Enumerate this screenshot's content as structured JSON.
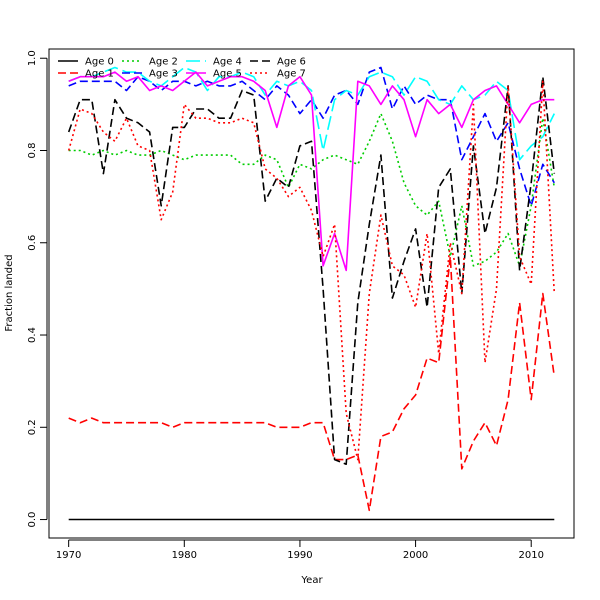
{
  "chart_data": {
    "type": "line",
    "title": "",
    "xlabel": "Year",
    "ylabel": "Fraction landed",
    "xlim": [
      1968.3,
      2013.7
    ],
    "ylim": [
      -0.04,
      1.02
    ],
    "xticks": [
      1970,
      1980,
      1990,
      2000,
      2010
    ],
    "yticks": [
      0.0,
      0.2,
      0.4,
      0.6,
      0.8,
      1.0
    ],
    "xtick_labels": [
      "1970",
      "1980",
      "1990",
      "2000",
      "2010"
    ],
    "ytick_labels": [
      "0.0",
      "0.2",
      "0.4",
      "0.6",
      "0.8",
      "1.0"
    ],
    "legend_position": "top-left",
    "grid": false,
    "x": [
      1970,
      1971,
      1972,
      1973,
      1974,
      1975,
      1976,
      1977,
      1978,
      1979,
      1980,
      1981,
      1982,
      1983,
      1984,
      1985,
      1986,
      1987,
      1988,
      1989,
      1990,
      1991,
      1992,
      1993,
      1994,
      1995,
      1996,
      1997,
      1998,
      1999,
      2000,
      2001,
      2002,
      2003,
      2004,
      2005,
      2006,
      2007,
      2008,
      2009,
      2010,
      2011,
      2012
    ],
    "series": [
      {
        "name": "Age 0",
        "color": "#000000",
        "dash": "solid",
        "values": [
          0,
          0,
          0,
          0,
          0,
          0,
          0,
          0,
          0,
          0,
          0,
          0,
          0,
          0,
          0,
          0,
          0,
          0,
          0,
          0,
          0,
          0,
          0,
          0,
          0,
          0,
          0,
          0,
          0,
          0,
          0,
          0,
          0,
          0,
          0,
          0,
          0,
          0,
          0,
          0,
          0,
          0,
          0
        ]
      },
      {
        "name": "Age 1",
        "color": "#ff0000",
        "dash": "dashed",
        "values": [
          0.22,
          0.21,
          0.22,
          0.21,
          0.21,
          0.21,
          0.21,
          0.21,
          0.21,
          0.2,
          0.21,
          0.21,
          0.21,
          0.21,
          0.21,
          0.21,
          0.21,
          0.21,
          0.2,
          0.2,
          0.2,
          0.21,
          0.21,
          0.13,
          0.13,
          0.14,
          0.02,
          0.18,
          0.19,
          0.24,
          0.27,
          0.35,
          0.34,
          0.57,
          0.11,
          0.17,
          0.21,
          0.16,
          0.26,
          0.47,
          0.26,
          0.49,
          0.31
        ]
      },
      {
        "name": "Age 2",
        "color": "#00cd00",
        "dash": "dotted",
        "values": [
          0.8,
          0.8,
          0.79,
          0.8,
          0.79,
          0.8,
          0.79,
          0.79,
          0.8,
          0.79,
          0.78,
          0.79,
          0.79,
          0.79,
          0.79,
          0.77,
          0.77,
          0.79,
          0.78,
          0.72,
          0.77,
          0.76,
          0.78,
          0.79,
          0.78,
          0.77,
          0.82,
          0.88,
          0.82,
          0.73,
          0.68,
          0.66,
          0.69,
          0.57,
          0.68,
          0.55,
          0.56,
          0.58,
          0.62,
          0.55,
          0.68,
          0.87,
          0.72
        ]
      },
      {
        "name": "Age 3",
        "color": "#0000ff",
        "dash": "dashed",
        "values": [
          0.94,
          0.95,
          0.95,
          0.95,
          0.95,
          0.93,
          0.96,
          0.95,
          0.93,
          0.95,
          0.95,
          0.94,
          0.95,
          0.94,
          0.94,
          0.95,
          0.93,
          0.91,
          0.94,
          0.92,
          0.88,
          0.91,
          0.87,
          0.92,
          0.93,
          0.9,
          0.97,
          0.98,
          0.89,
          0.94,
          0.9,
          0.92,
          0.91,
          0.91,
          0.78,
          0.83,
          0.88,
          0.82,
          0.86,
          0.76,
          0.68,
          0.77,
          0.73
        ]
      },
      {
        "name": "Age 4",
        "color": "#00ffff",
        "dash": "longdash",
        "values": [
          0.95,
          0.96,
          0.96,
          0.97,
          0.98,
          0.97,
          0.97,
          0.95,
          0.94,
          0.96,
          0.98,
          0.97,
          0.93,
          0.96,
          0.96,
          0.97,
          0.96,
          0.92,
          0.95,
          0.94,
          0.95,
          0.93,
          0.8,
          0.91,
          0.93,
          0.92,
          0.96,
          0.97,
          0.96,
          0.92,
          0.96,
          0.95,
          0.91,
          0.9,
          0.94,
          0.91,
          0.92,
          0.95,
          0.93,
          0.78,
          0.81,
          0.83,
          0.88
        ]
      },
      {
        "name": "Age 5",
        "color": "#ff00ff",
        "dash": "solid",
        "values": [
          0.95,
          0.96,
          0.96,
          0.96,
          0.97,
          0.95,
          0.96,
          0.93,
          0.94,
          0.93,
          0.95,
          0.97,
          0.94,
          0.95,
          0.96,
          0.96,
          0.95,
          0.93,
          0.85,
          0.94,
          0.96,
          0.92,
          0.55,
          0.62,
          0.54,
          0.95,
          0.94,
          0.9,
          0.94,
          0.91,
          0.83,
          0.91,
          0.88,
          0.9,
          0.85,
          0.91,
          0.93,
          0.94,
          0.9,
          0.86,
          0.9,
          0.91,
          0.91
        ]
      },
      {
        "name": "Age 6",
        "color": "#000000",
        "dash": "dashed",
        "values": [
          0.84,
          0.91,
          0.91,
          0.75,
          0.91,
          0.87,
          0.86,
          0.84,
          0.68,
          0.85,
          0.85,
          0.89,
          0.89,
          0.87,
          0.87,
          0.93,
          0.92,
          0.69,
          0.74,
          0.72,
          0.81,
          0.82,
          0.5,
          0.13,
          0.12,
          0.47,
          0.64,
          0.79,
          0.48,
          0.56,
          0.63,
          0.46,
          0.72,
          0.76,
          0.49,
          0.81,
          0.62,
          0.72,
          0.94,
          0.54,
          0.73,
          0.96,
          0.75
        ]
      },
      {
        "name": "Age 7",
        "color": "#ff0000",
        "dash": "dotted",
        "values": [
          0.8,
          0.89,
          0.88,
          0.84,
          0.82,
          0.87,
          0.81,
          0.8,
          0.65,
          0.71,
          0.9,
          0.87,
          0.87,
          0.86,
          0.86,
          0.87,
          0.86,
          0.76,
          0.74,
          0.7,
          0.72,
          0.67,
          0.57,
          0.64,
          0.23,
          0.13,
          0.49,
          0.66,
          0.55,
          0.53,
          0.46,
          0.62,
          0.36,
          0.6,
          0.49,
          0.9,
          0.34,
          0.5,
          0.94,
          0.57,
          0.51,
          0.95,
          0.49
        ]
      }
    ]
  }
}
